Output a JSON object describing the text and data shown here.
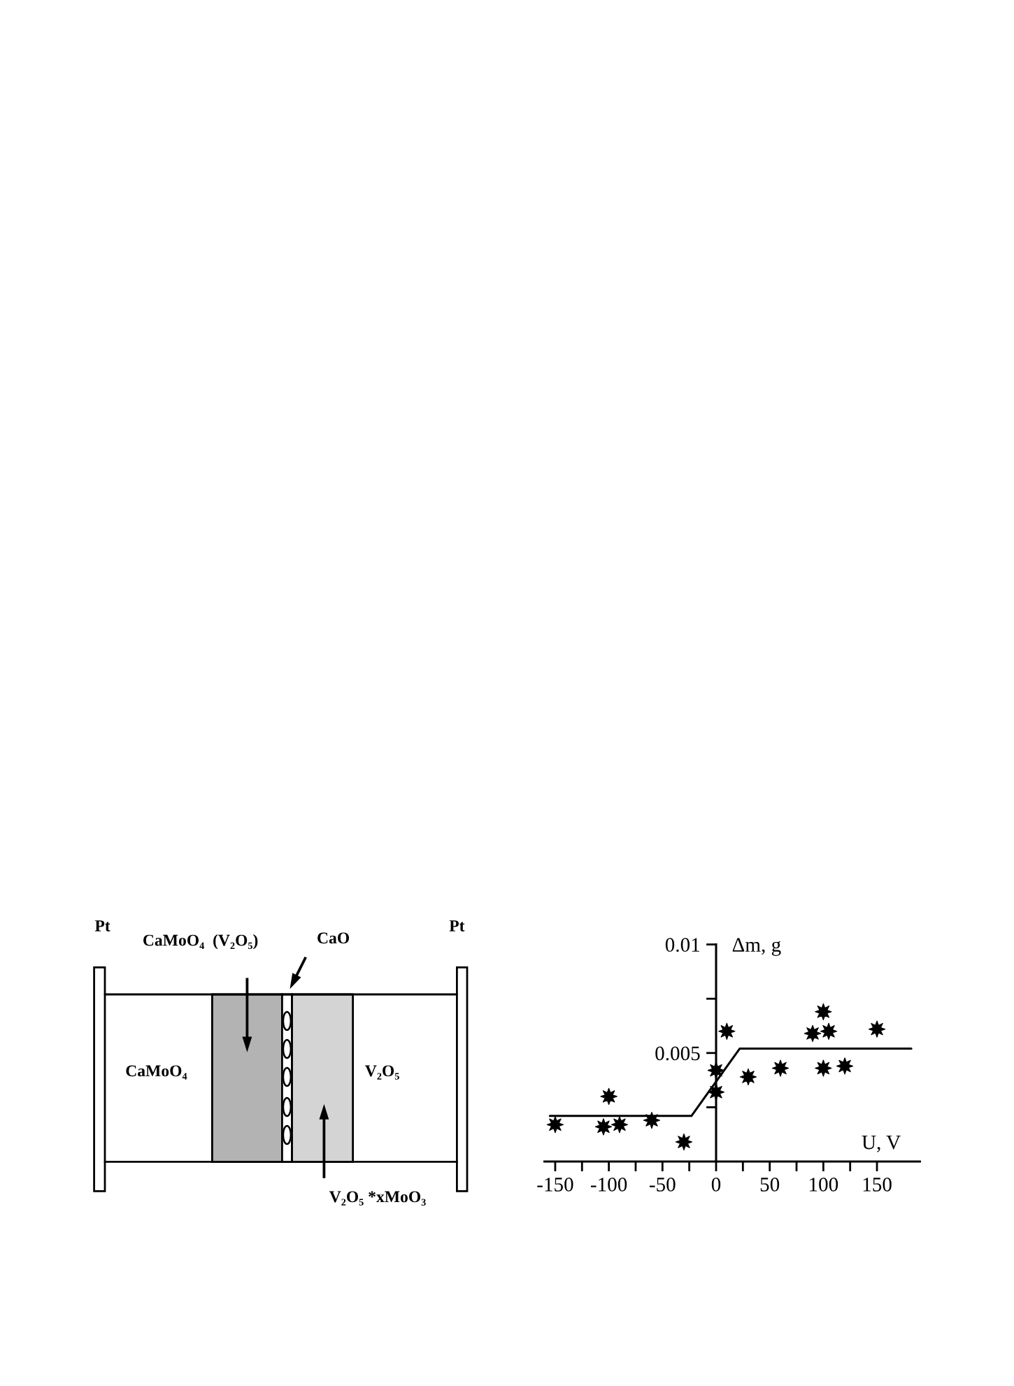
{
  "chart_data": [
    {
      "type": "other",
      "annotations": [
        "Pt",
        "Pt",
        "CaMoO₄  (V₂O₅)",
        "CaO",
        "CaMoO₄",
        "V₂O₅",
        "V₂O₅ *xMoO₃"
      ]
    },
    {
      "type": "scatter",
      "xlabel": "U, V",
      "ylabel": "Δm, g",
      "xlim": [
        -160,
        190
      ],
      "ylim": [
        0,
        0.01
      ],
      "xticks": [
        -150,
        {
          "value": -125,
          "label": null
        },
        -100,
        {
          "value": -75,
          "label": null
        },
        -50,
        {
          "value": -25,
          "label": null
        },
        0,
        {
          "value": 25,
          "label": null
        },
        50,
        {
          "value": 75,
          "label": null
        },
        100,
        {
          "value": 125,
          "label": null
        },
        150
      ],
      "yticks": [
        {
          "value": 0.0025,
          "label": null
        },
        0.005,
        {
          "value": 0.0075,
          "label": null
        },
        0.01
      ],
      "grid": false,
      "marker": "star",
      "series": [
        {
          "type": "scatter",
          "color": "#000000",
          "x": [
            -150,
            -105,
            -100,
            -90,
            -60,
            -30,
            0,
            0,
            10,
            30,
            60,
            90,
            100,
            100,
            105,
            120,
            150
          ],
          "values": [
            0.0017,
            0.0016,
            0.003,
            0.0017,
            0.0019,
            0.0009,
            0.0032,
            0.0042,
            0.006,
            0.0039,
            0.0043,
            0.0059,
            0.0069,
            0.0043,
            0.006,
            0.0044,
            0.0061
          ]
        },
        {
          "type": "line",
          "color": "#000000",
          "marker": "none",
          "line_style": "solid",
          "x": [
            -155,
            -23,
            22,
            182
          ],
          "values": [
            0.0021,
            0.0021,
            0.0052,
            0.0052
          ]
        }
      ]
    }
  ]
}
